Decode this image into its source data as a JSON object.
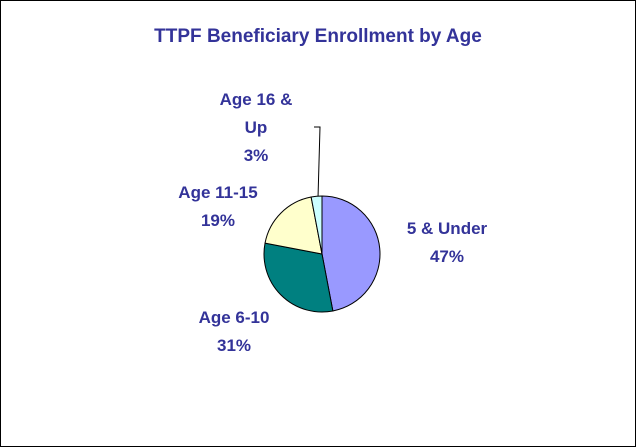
{
  "chart_data": {
    "type": "pie",
    "title": "TTPF Beneficiary Enrollment by Age",
    "categories": [
      "5 & Under",
      "Age 6-10",
      "Age 11-15",
      "Age 16 & Up"
    ],
    "values": [
      47,
      31,
      19,
      3
    ],
    "value_labels": [
      "47%",
      "31%",
      "19%",
      "3%"
    ],
    "colors": [
      "#9999ff",
      "#008080",
      "#ffffcc",
      "#ccffff"
    ]
  }
}
